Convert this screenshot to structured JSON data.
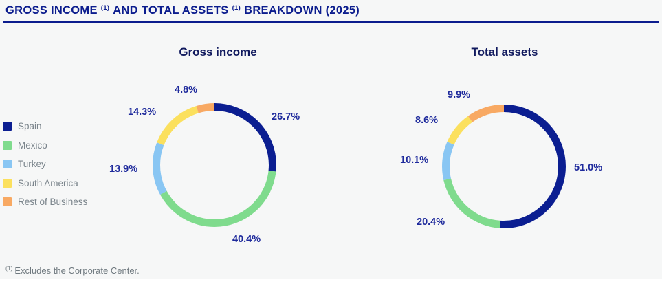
{
  "header": {
    "title_part1": "GROSS INCOME",
    "title_sup1": "(1)",
    "title_part2": "AND TOTAL ASSETS",
    "title_sup2": "(1)",
    "title_part3": "BREAKDOWN (2025)"
  },
  "legend": {
    "items": [
      {
        "label": "Spain",
        "color": "#0B1E91"
      },
      {
        "label": "Mexico",
        "color": "#7FDB8D"
      },
      {
        "label": "Turkey",
        "color": "#89C6F3"
      },
      {
        "label": "South America",
        "color": "#FBE05E"
      },
      {
        "label": "Rest of Business",
        "color": "#F8A963"
      }
    ]
  },
  "chart_data": [
    {
      "type": "pie",
      "subtype": "donut",
      "title": "Gross income",
      "categories": [
        "Spain",
        "Mexico",
        "Turkey",
        "South America",
        "Rest of Business"
      ],
      "values": [
        26.7,
        40.4,
        13.9,
        14.3,
        4.8
      ],
      "labels": [
        "26.7%",
        "40.4%",
        "13.9%",
        "14.3%",
        "4.8%"
      ],
      "colors": [
        "#0B1E91",
        "#7FDB8D",
        "#89C6F3",
        "#FBE05E",
        "#F8A963"
      ],
      "unit": "%",
      "start_angle_deg": 0,
      "direction": "clockwise",
      "legend_position": "left"
    },
    {
      "type": "pie",
      "subtype": "donut",
      "title": "Total assets",
      "categories": [
        "Spain",
        "Mexico",
        "Turkey",
        "South America",
        "Rest of Business"
      ],
      "values": [
        51.0,
        20.4,
        10.1,
        8.6,
        9.9
      ],
      "labels": [
        "51.0%",
        "20.4%",
        "10.1%",
        "8.6%",
        "9.9%"
      ],
      "colors": [
        "#0B1E91",
        "#7FDB8D",
        "#89C6F3",
        "#FBE05E",
        "#F8A963"
      ],
      "unit": "%",
      "start_angle_deg": 0,
      "direction": "clockwise",
      "legend_position": "left"
    }
  ],
  "footnote": {
    "sup": "(1)",
    "text": "Excludes the Corporate Center."
  },
  "colors": {
    "accent_navy": "#0C1D8E",
    "percent_label_navy": "#1E2A9C",
    "chart_title_navy": "#111A5E",
    "legend_text_gray": "#7B858C",
    "footnote_gray": "#6F797F",
    "background": "#F6F7F7"
  }
}
